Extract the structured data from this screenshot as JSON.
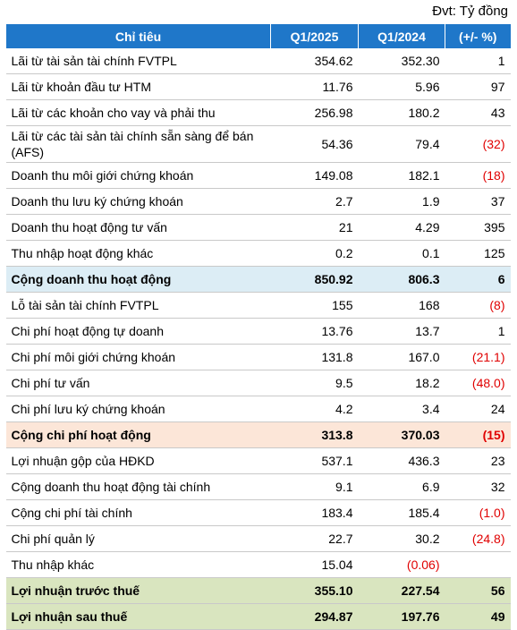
{
  "unit": "Đvt: Tỷ đồng",
  "table": {
    "header": [
      "Chỉ tiêu",
      "Q1/2025",
      "Q1/2024",
      "(+/- %)"
    ],
    "rows": [
      [
        "Lãi từ tài sản tài chính FVTPL",
        "354.62",
        "352.30",
        "1"
      ],
      [
        "Lãi từ khoản đầu tư HTM",
        "11.76",
        "5.96",
        "97"
      ],
      [
        "Lãi từ các khoản cho vay và phải thu",
        "256.98",
        "180.2",
        "43"
      ],
      [
        "Lãi từ các tài sản tài chính sẵn sàng để bán (AFS)",
        "54.36",
        "79.4",
        "(32)"
      ],
      [
        "Doanh thu môi giới chứng khoán",
        "149.08",
        "182.1",
        "(18)"
      ],
      [
        "Doanh thu lưu ký chứng khoán",
        "2.7",
        "1.9",
        "37"
      ],
      [
        "Doanh thu hoạt động tư vấn",
        "21",
        "4.29",
        "395"
      ],
      [
        "Thu nhập hoạt động khác",
        "0.2",
        "0.1",
        "125"
      ],
      [
        "Cộng doanh thu hoạt động",
        "850.92",
        "806.3",
        "6"
      ],
      [
        "Lỗ tài sản tài chính FVTPL",
        "155",
        "168",
        "(8)"
      ],
      [
        "Chi phí hoạt động tự doanh",
        "13.76",
        "13.7",
        "1"
      ],
      [
        "Chi phí môi giới chứng khoán",
        "131.8",
        "167.0",
        "(21.1)"
      ],
      [
        "Chi phí tư vấn",
        "9.5",
        "18.2",
        "(48.0)"
      ],
      [
        "Chi phí lưu ký chứng khoán",
        "4.2",
        "3.4",
        "24"
      ],
      [
        "Cộng chi phí hoạt động",
        "313.8",
        "370.03",
        "(15)"
      ],
      [
        "Lợi nhuận gộp của HĐKD",
        "537.1",
        "436.3",
        "23"
      ],
      [
        "Cộng doanh thu hoạt động tài chính",
        "9.1",
        "6.9",
        "32"
      ],
      [
        "Cộng chi phí tài chính",
        "183.4",
        "185.4",
        "(1.0)"
      ],
      [
        "Chi phí quản lý",
        "22.7",
        "30.2",
        "(24.8)"
      ],
      [
        "Thu nhập khác",
        "15.04",
        "(0.06)",
        null
      ],
      [
        "Lợi nhuận trước thuế",
        "355.10",
        "227.54",
        "56"
      ],
      [
        "Lợi nhuận sau thuế",
        "294.87",
        "197.76",
        "49"
      ]
    ]
  }
}
